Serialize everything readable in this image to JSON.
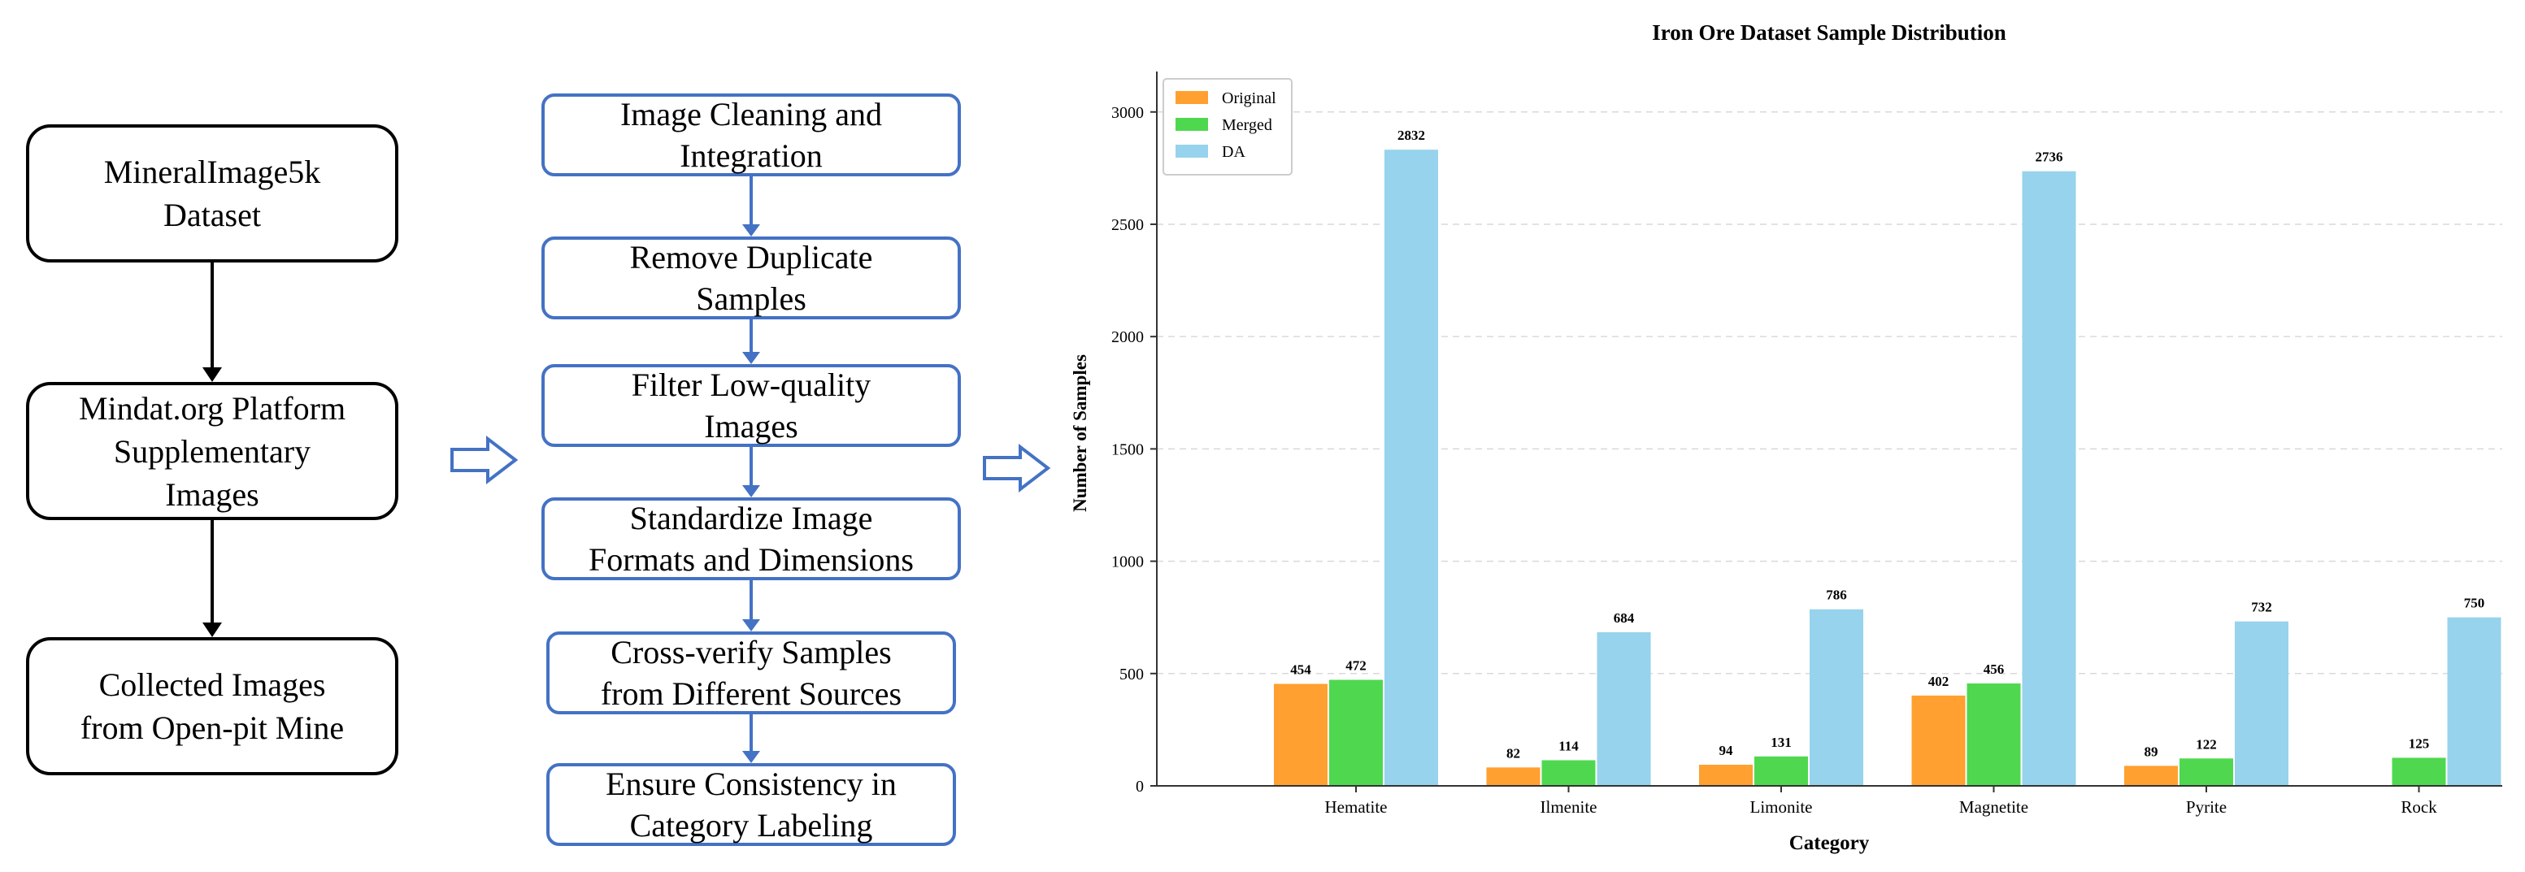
{
  "left_flow": {
    "steps": [
      "MineralImage5k\nDataset",
      "Mindat.org Platform\nSupplementary\nImages",
      "Collected Images\nfrom Open-pit Mine"
    ]
  },
  "middle_flow": {
    "steps": [
      "Image Cleaning and\nIntegration",
      "Remove Duplicate\nSamples",
      "Filter Low-quality\nImages",
      "Standardize Image\nFormats and Dimensions",
      "Cross-verify Samples\nfrom Different Sources",
      "Ensure Consistency in\nCategory Labeling"
    ]
  },
  "colors": {
    "original": "#ffa030",
    "merged": "#4fd84f",
    "da": "#97d3ec",
    "flow_blue": "#4472c4"
  },
  "chart_data": {
    "type": "bar",
    "title": "Iron Ore Dataset Sample Distribution",
    "xlabel": "Category",
    "ylabel": "Number of Samples",
    "categories": [
      "Hematite",
      "Ilmenite",
      "Limonite",
      "Magnetite",
      "Pyrite",
      "Rock"
    ],
    "series": [
      {
        "name": "Original",
        "values": [
          454,
          82,
          94,
          402,
          89,
          0
        ],
        "labels": [
          "454",
          "82",
          "94",
          "402",
          "89",
          ""
        ]
      },
      {
        "name": "Merged",
        "values": [
          472,
          114,
          131,
          456,
          122,
          125
        ],
        "labels": [
          "472",
          "114",
          "131",
          "456",
          "122",
          "125"
        ]
      },
      {
        "name": "DA",
        "values": [
          2832,
          684,
          786,
          2736,
          732,
          750
        ],
        "labels": [
          "2832",
          "684",
          "786",
          "2736",
          "732",
          "750"
        ]
      }
    ],
    "ylim": [
      0,
      3180
    ],
    "yticks": [
      0,
      500,
      1000,
      1500,
      2000,
      2500,
      3000
    ],
    "grid": true,
    "legend": "top-left"
  }
}
